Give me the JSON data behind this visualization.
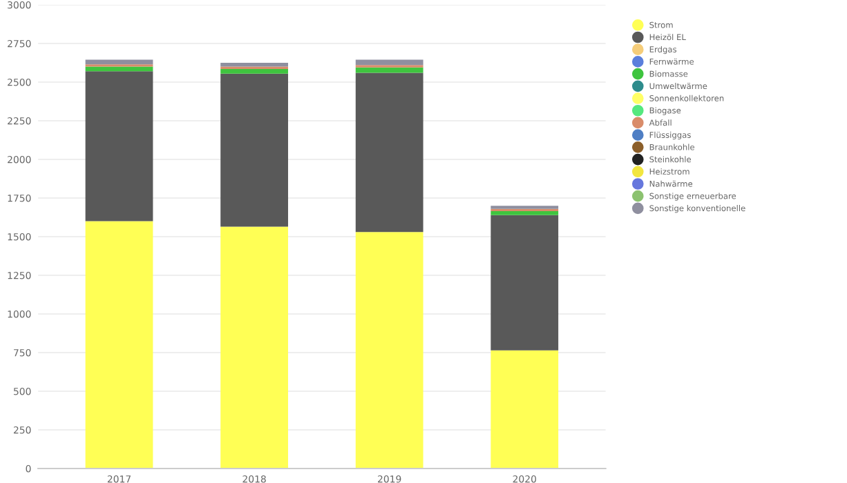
{
  "chart_data": {
    "type": "bar",
    "stacked": true,
    "categories": [
      "2017",
      "2018",
      "2019",
      "2020"
    ],
    "series": [
      {
        "name": "Strom",
        "color": "#ffff55",
        "values": [
          1600,
          1565,
          1530,
          765
        ]
      },
      {
        "name": "Heizöl EL",
        "color": "#595959",
        "values": [
          970,
          990,
          1030,
          875
        ]
      },
      {
        "name": "Erdgas",
        "color": "#f5cd7a",
        "values": [
          0,
          0,
          0,
          0
        ]
      },
      {
        "name": "Fernwärme",
        "color": "#5b7fdc",
        "values": [
          0,
          0,
          0,
          0
        ]
      },
      {
        "name": "Biomasse",
        "color": "#3fc43f",
        "values": [
          30,
          30,
          35,
          25
        ]
      },
      {
        "name": "Umweltwärme",
        "color": "#2e8c8c",
        "values": [
          0,
          0,
          0,
          0
        ]
      },
      {
        "name": "Sonnenkollektoren",
        "color": "#ffff66",
        "values": [
          0,
          0,
          0,
          0
        ]
      },
      {
        "name": "Biogase",
        "color": "#55e87f",
        "values": [
          0,
          0,
          0,
          0
        ]
      },
      {
        "name": "Abfall",
        "color": "#d98c6a",
        "values": [
          15,
          15,
          15,
          15
        ]
      },
      {
        "name": "Flüssiggas",
        "color": "#4f7fc4",
        "values": [
          0,
          0,
          0,
          0
        ]
      },
      {
        "name": "Braunkohle",
        "color": "#8c5f2a",
        "values": [
          0,
          0,
          0,
          0
        ]
      },
      {
        "name": "Steinkohle",
        "color": "#222222",
        "values": [
          0,
          0,
          0,
          0
        ]
      },
      {
        "name": "Heizstrom",
        "color": "#f2e640",
        "values": [
          0,
          0,
          0,
          0
        ]
      },
      {
        "name": "Nahwärme",
        "color": "#6677dd",
        "values": [
          0,
          0,
          0,
          0
        ]
      },
      {
        "name": "Sonstige erneuerbare",
        "color": "#8cc270",
        "values": [
          0,
          0,
          0,
          0
        ]
      },
      {
        "name": "Sonstige konventionelle",
        "color": "#8f8f9f",
        "values": [
          30,
          25,
          35,
          20
        ]
      }
    ],
    "ylim": [
      0,
      3000
    ],
    "yticks": [
      0,
      250,
      500,
      750,
      1000,
      1250,
      1500,
      1750,
      2000,
      2250,
      2500,
      2750,
      3000
    ],
    "grid": "y",
    "legend": "top right",
    "marker": "circle"
  }
}
